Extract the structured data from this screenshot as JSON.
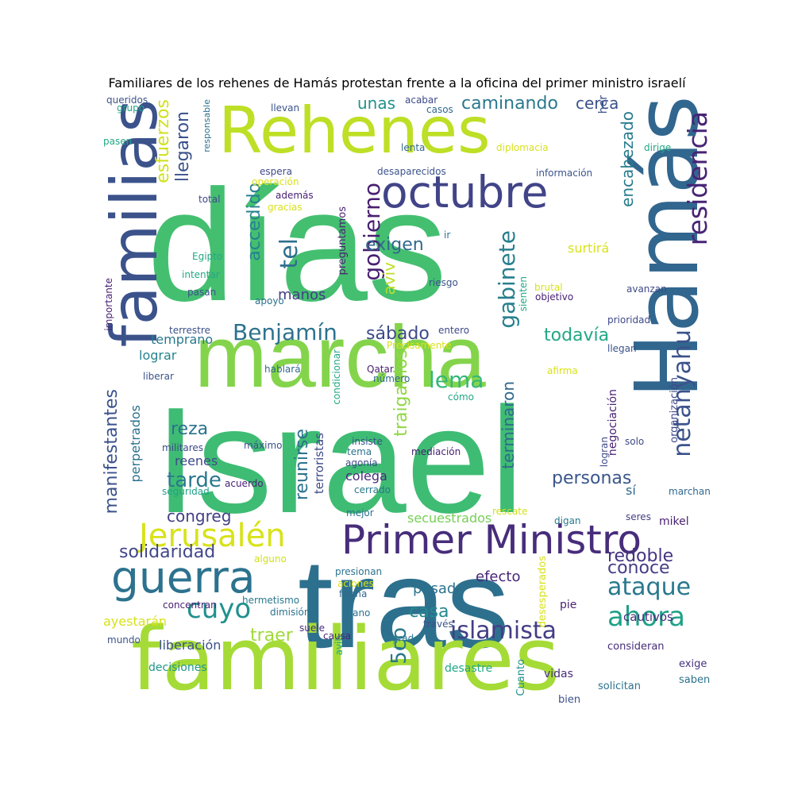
{
  "title": "Familiares de los rehenes de Hamás protestan frente a la oficina del primer ministro israelí",
  "words": [
    {
      "text": "días",
      "color": "#44bf70"
    },
    {
      "text": "Israel",
      "color": "#3ebc73"
    },
    {
      "text": "tras",
      "color": "#2d708e"
    },
    {
      "text": "marcha",
      "color": "#84d44b"
    },
    {
      "text": "familiares",
      "color": "#a5db36"
    },
    {
      "text": "Rehenes",
      "color": "#bddf26"
    },
    {
      "text": "Hamás",
      "color": "#31668e"
    },
    {
      "text": "familias",
      "color": "#3b528b"
    },
    {
      "text": "octubre",
      "color": "#414487"
    },
    {
      "text": "Primer Ministro",
      "color": "#472d7b"
    },
    {
      "text": "guerra",
      "color": "#2c728e"
    },
    {
      "text": "Jerusalén",
      "color": "#d8e219"
    },
    {
      "text": "residencia",
      "color": "#482475"
    },
    {
      "text": "netanyahu",
      "color": "#3b528b"
    },
    {
      "text": "gobierno",
      "color": "#481f70"
    },
    {
      "text": "gabinete",
      "color": "#277f8e"
    },
    {
      "text": "Benjamín",
      "color": "#2c728e"
    },
    {
      "text": "islamista",
      "color": "#433e85"
    },
    {
      "text": "ahora",
      "color": "#1fa187"
    },
    {
      "text": "ataque",
      "color": "#2a788e"
    },
    {
      "text": "cuyo",
      "color": "#21918c"
    },
    {
      "text": "tel",
      "color": "#2e6e8e"
    },
    {
      "text": "esfuerzos",
      "color": "#d0e11c"
    },
    {
      "text": "llegaron",
      "color": "#3b528b"
    },
    {
      "text": "caminando",
      "color": "#2a788e"
    },
    {
      "text": "encabezado",
      "color": "#287c8e"
    },
    {
      "text": "exigen",
      "color": "#31688e"
    },
    {
      "text": "accedido",
      "color": "#26818e"
    },
    {
      "text": "manifestantes",
      "color": "#3b528b"
    },
    {
      "text": "lema",
      "color": "#35b779"
    },
    {
      "text": "traiganlos",
      "color": "#90d743"
    },
    {
      "text": "reunirse",
      "color": "#2c728e"
    },
    {
      "text": "terminaron",
      "color": "#31688e"
    },
    {
      "text": "personas",
      "color": "#39568c"
    },
    {
      "text": "solidaridad",
      "color": "#404688"
    },
    {
      "text": "todavía",
      "color": "#22a884"
    },
    {
      "text": "unas",
      "color": "#21918c"
    },
    {
      "text": "cerca",
      "color": "#3b528b"
    },
    {
      "text": "sábado",
      "color": "#3e4989"
    },
    {
      "text": "aviv",
      "color": "#bddf26"
    },
    {
      "text": "tarde",
      "color": "#2a788e"
    },
    {
      "text": "reza",
      "color": "#2c728e"
    },
    {
      "text": "congreg",
      "color": "#423f85"
    },
    {
      "text": "redoble",
      "color": "#453581"
    },
    {
      "text": "conoce",
      "color": "#433e85"
    },
    {
      "text": "casa",
      "color": "#23898e"
    },
    {
      "text": "traer",
      "color": "#a0da39"
    },
    {
      "text": "5co",
      "color": "#2a788e"
    },
    {
      "text": "manos",
      "color": "#423f85"
    },
    {
      "text": "pasado",
      "color": "#2c728e"
    },
    {
      "text": "efecto",
      "color": "#482677"
    },
    {
      "text": "secuestrados",
      "color": "#75d054"
    },
    {
      "text": "surtirá",
      "color": "#d8e219"
    },
    {
      "text": "her",
      "color": "#3b528b"
    },
    {
      "text": "temprano",
      "color": "#2a788e"
    },
    {
      "text": "lograr",
      "color": "#25848e"
    },
    {
      "text": "reenes",
      "color": "#3e4989"
    },
    {
      "text": "colega",
      "color": "#472d7b"
    },
    {
      "text": "perpetrados",
      "color": "#2c728e"
    },
    {
      "text": "terroristas",
      "color": "#3e4989"
    },
    {
      "text": "ayestarán",
      "color": "#d8e219"
    },
    {
      "text": "liberación",
      "color": "#3b528b"
    },
    {
      "text": "cautivos",
      "color": "#472d7b"
    },
    {
      "text": "mikel",
      "color": "#481f70"
    },
    {
      "text": "sí",
      "color": "#31688e"
    },
    {
      "text": "negociación",
      "color": "#482173"
    },
    {
      "text": "organización",
      "color": "#3e4989"
    },
    {
      "text": "preguntamos",
      "color": "#481f70"
    },
    {
      "text": "pie",
      "color": "#481f70"
    },
    {
      "text": "consideran",
      "color": "#472d7b"
    },
    {
      "text": "exige",
      "color": "#463480"
    },
    {
      "text": "saben",
      "color": "#2c728e"
    },
    {
      "text": "decisiones",
      "color": "#1f968b"
    },
    {
      "text": "desastre",
      "color": "#22a884"
    },
    {
      "text": "vidas",
      "color": "#472d7b"
    },
    {
      "text": "solicitan",
      "color": "#2c728e"
    },
    {
      "text": "bien",
      "color": "#3b528b"
    },
    {
      "text": "Cuanto",
      "color": "#21918c"
    },
    {
      "text": "desesperados",
      "color": "#d8e219"
    },
    {
      "text": "mundo",
      "color": "#3b528b"
    },
    {
      "text": "avib",
      "color": "#22a884"
    },
    {
      "text": "logrado",
      "color": "#2a788e"
    },
    {
      "text": "causa",
      "color": "#482677"
    },
    {
      "text": "suele",
      "color": "#472d7b"
    },
    {
      "text": "través",
      "color": "#3b528b"
    },
    {
      "text": "dimisión",
      "color": "#2c728e"
    },
    {
      "text": "hermetismo",
      "color": "#2a788e"
    },
    {
      "text": "concentran",
      "color": "#482173"
    },
    {
      "text": "etano",
      "color": "#2c728e"
    },
    {
      "text": "forma",
      "color": "#31688e"
    },
    {
      "text": "aciones",
      "color": "#d8e219"
    },
    {
      "text": "presionan",
      "color": "#2c728e"
    },
    {
      "text": "alguno",
      "color": "#d0e11c"
    },
    {
      "text": "seres",
      "color": "#433e85"
    },
    {
      "text": "digan",
      "color": "#2a788e"
    },
    {
      "text": "rescate",
      "color": "#d0e11c"
    },
    {
      "text": "mejor",
      "color": "#2c728e"
    },
    {
      "text": "cerrado",
      "color": "#2a788e"
    },
    {
      "text": "acuerdo",
      "color": "#482173"
    },
    {
      "text": "seguridad",
      "color": "#1fa187"
    },
    {
      "text": "militares",
      "color": "#3e4989"
    },
    {
      "text": "máximo",
      "color": "#3b528b"
    },
    {
      "text": "insiste",
      "color": "#3b528b"
    },
    {
      "text": "tema",
      "color": "#2c728e"
    },
    {
      "text": "agonía",
      "color": "#3e4989"
    },
    {
      "text": "mediación",
      "color": "#482173"
    },
    {
      "text": "logran",
      "color": "#3e4989"
    },
    {
      "text": "solo",
      "color": "#3e4989"
    },
    {
      "text": "marchan",
      "color": "#31688e"
    },
    {
      "text": "condicionar",
      "color": "#22a884"
    },
    {
      "text": "número",
      "color": "#31688e"
    },
    {
      "text": "Qatar",
      "color": "#481f70"
    },
    {
      "text": "cómo",
      "color": "#22a884"
    },
    {
      "text": "afirma",
      "color": "#d8e219"
    },
    {
      "text": "hablará",
      "color": "#31688e"
    },
    {
      "text": "liberar",
      "color": "#3b528b"
    },
    {
      "text": "Precisamente",
      "color": "#d8e219"
    },
    {
      "text": "entero",
      "color": "#3e4989"
    },
    {
      "text": "terrestre",
      "color": "#3b528b"
    },
    {
      "text": "importante",
      "color": "#482173"
    },
    {
      "text": "prioridad",
      "color": "#3e4989"
    },
    {
      "text": "llegan",
      "color": "#3b528b"
    },
    {
      "text": "pasan",
      "color": "#3b528b"
    },
    {
      "text": "apoyo",
      "color": "#2c728e"
    },
    {
      "text": "objetivo",
      "color": "#482173"
    },
    {
      "text": "brutal",
      "color": "#d8e219"
    },
    {
      "text": "avanzan",
      "color": "#3e4989"
    },
    {
      "text": "sienten",
      "color": "#22a884"
    },
    {
      "text": "riesgo",
      "color": "#3b528b"
    },
    {
      "text": "intentar",
      "color": "#22a884"
    },
    {
      "text": "Egipto",
      "color": "#22a884"
    },
    {
      "text": "ir",
      "color": "#2c728e"
    },
    {
      "text": "total",
      "color": "#3e4989"
    },
    {
      "text": "además",
      "color": "#482173"
    },
    {
      "text": "gracias",
      "color": "#d8e219"
    },
    {
      "text": "operación",
      "color": "#d8e219"
    },
    {
      "text": "espera",
      "color": "#3e4989"
    },
    {
      "text": "desaparecidos",
      "color": "#3b528b"
    },
    {
      "text": "información",
      "color": "#3b528b"
    },
    {
      "text": "dirige",
      "color": "#22a884"
    },
    {
      "text": "lenta",
      "color": "#31688e"
    },
    {
      "text": "diplomacia",
      "color": "#d8e219"
    },
    {
      "text": "llevan",
      "color": "#3b528b"
    },
    {
      "text": "acabar",
      "color": "#3e4989"
    },
    {
      "text": "casos",
      "color": "#31688e"
    },
    {
      "text": "responsable",
      "color": "#2c728e"
    },
    {
      "text": "queridos",
      "color": "#3b528b"
    },
    {
      "text": "grupo",
      "color": "#22a884"
    },
    {
      "text": "pasen",
      "color": "#22a884"
    }
  ]
}
